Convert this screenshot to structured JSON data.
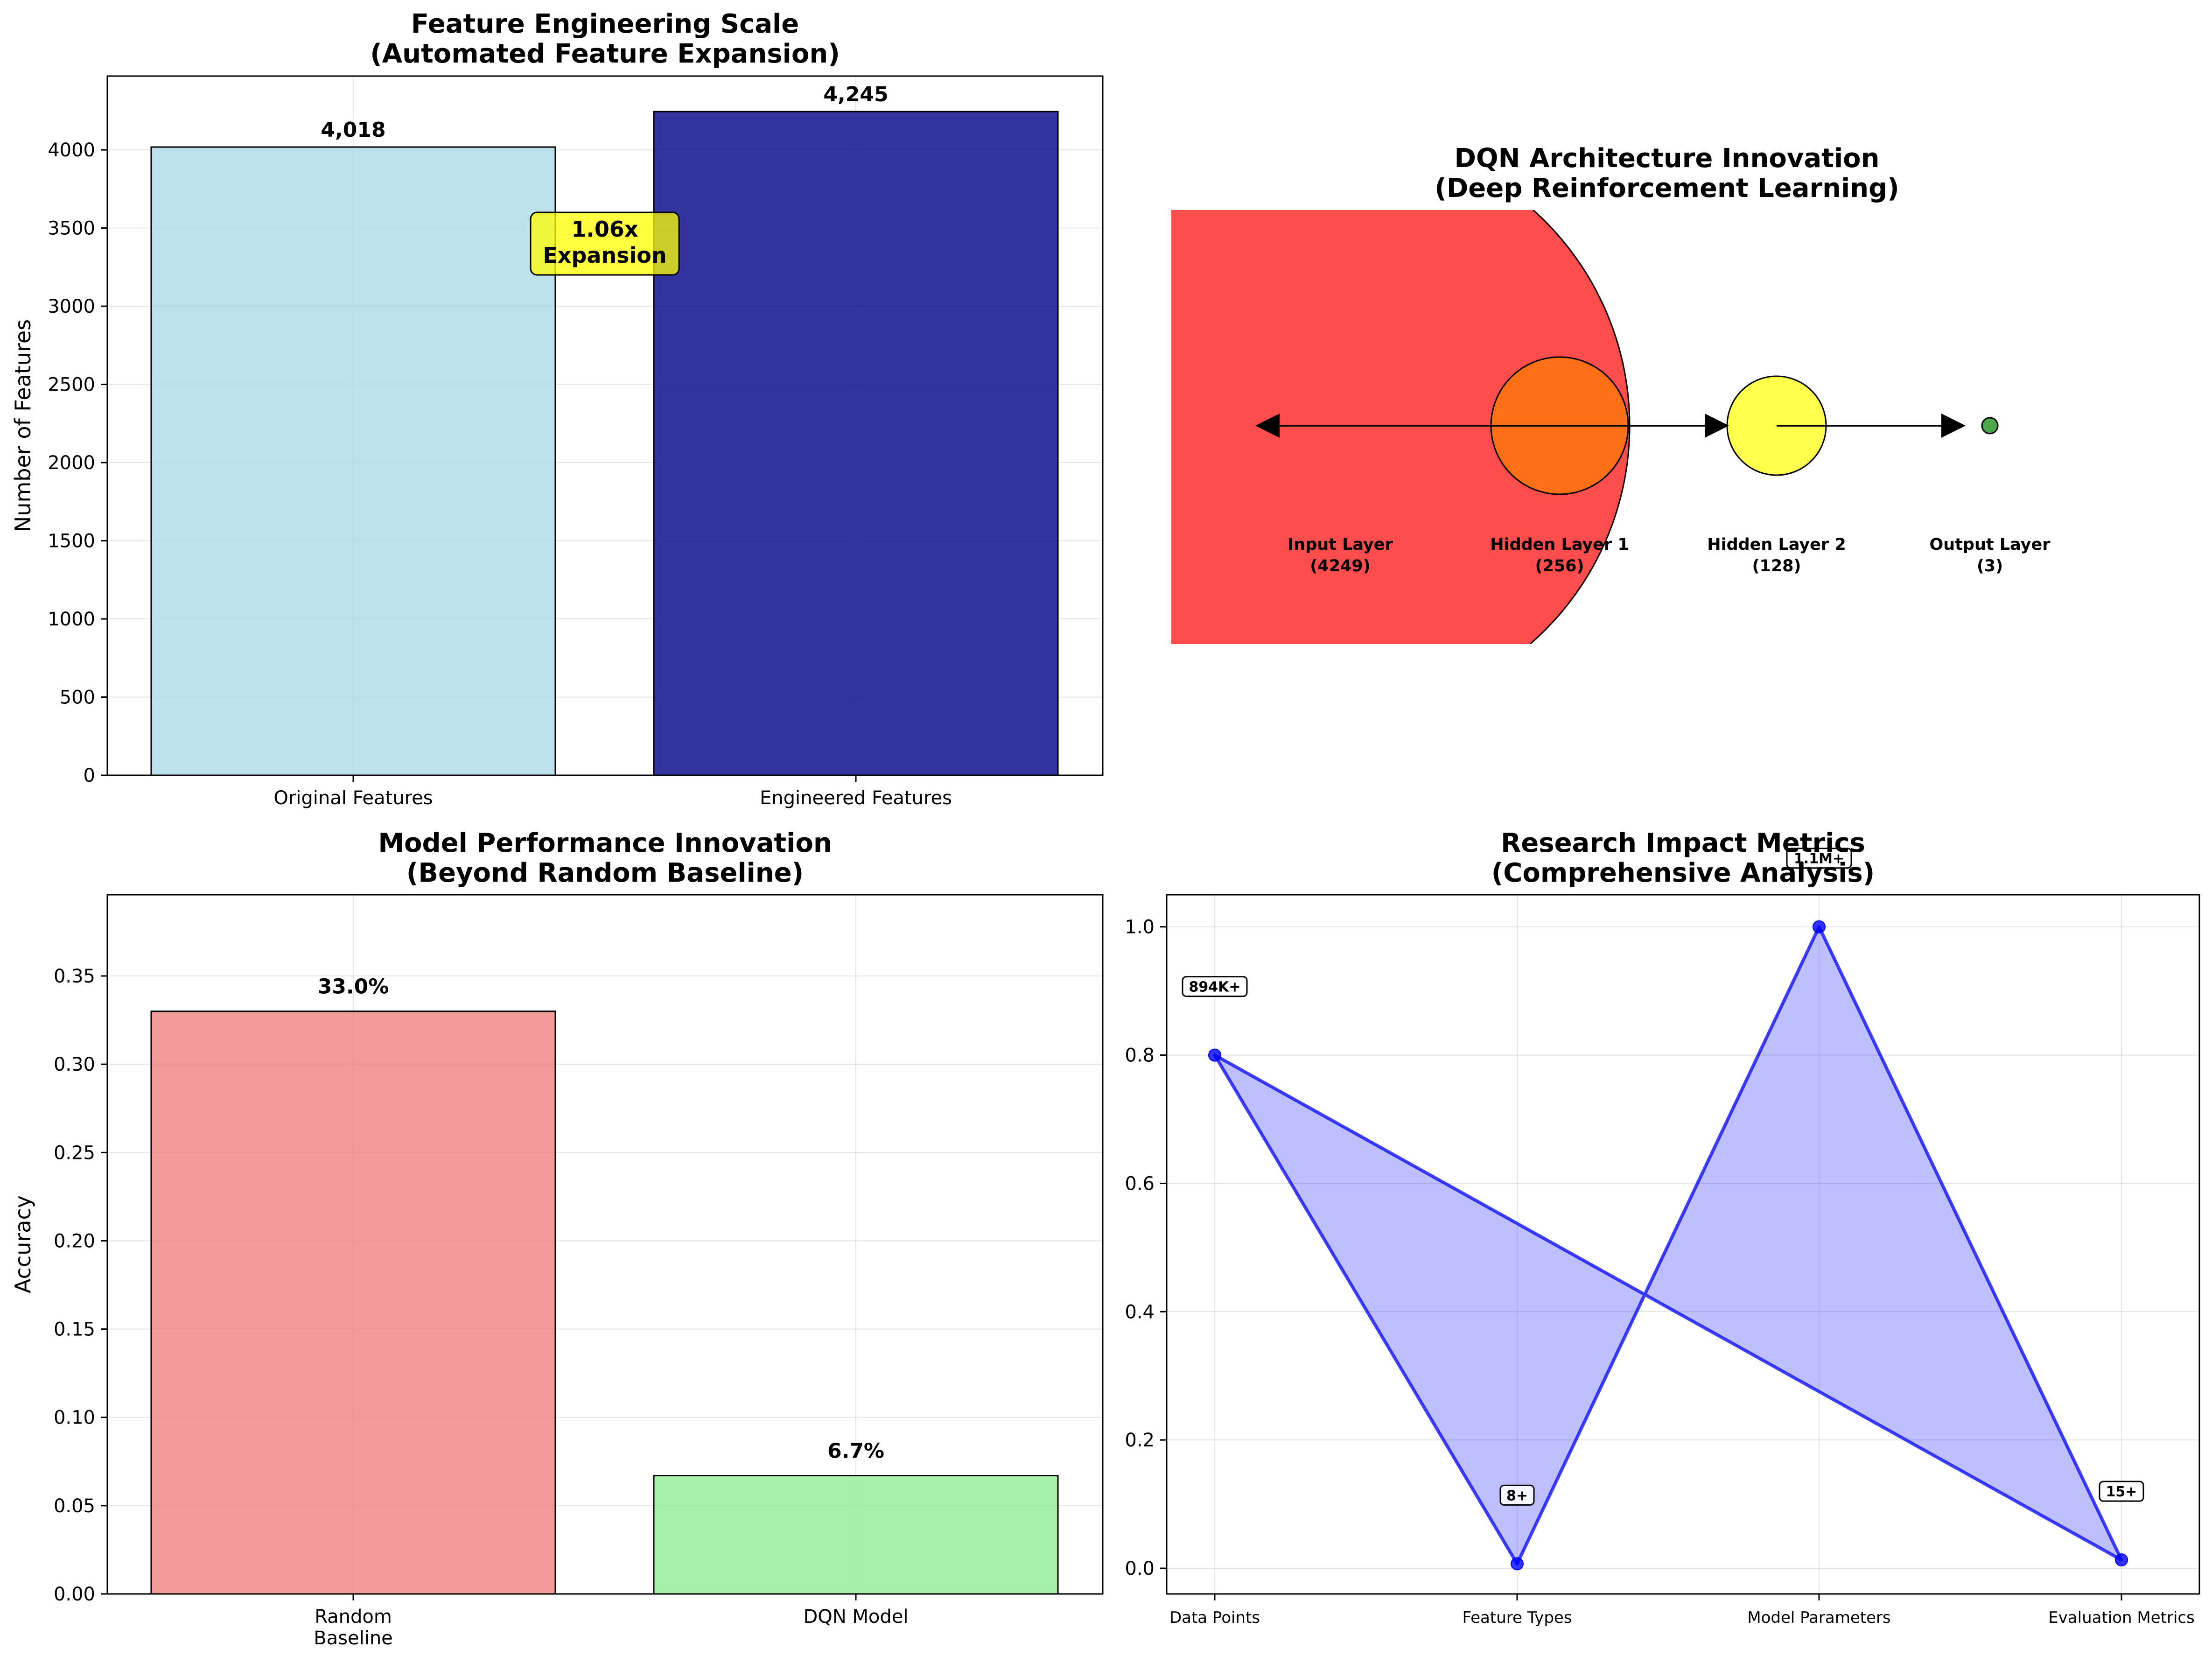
{
  "chart_data": [
    {
      "type": "bar",
      "title": "Feature Engineering Scale\n(Automated Feature Expansion)",
      "xlabel": "",
      "ylabel": "Number of Features",
      "categories": [
        "Original Features",
        "Engineered Features"
      ],
      "values": [
        4018,
        4245
      ],
      "data_labels": [
        "4,018",
        "4,245"
      ],
      "colors": [
        "#add8e6",
        "#00008b"
      ],
      "ylim": [
        0,
        4472
      ],
      "yticks": [
        0,
        500,
        1000,
        1500,
        2000,
        2500,
        3000,
        3500,
        4000
      ],
      "grid": true,
      "annotation": "1.06x\nExpansion",
      "annotation_color": "#ffff00"
    },
    {
      "type": "diagram",
      "title": "DQN Architecture Innovation\n(Deep Reinforcement Learning)",
      "layers": [
        {
          "name": "Input Layer",
          "size_label": "(4249)",
          "size": 4249,
          "color": "#ff0000"
        },
        {
          "name": "Hidden Layer 1",
          "size_label": "(256)",
          "size": 256,
          "color": "#ff7f00"
        },
        {
          "name": "Hidden Layer 2",
          "size_label": "(128)",
          "size": 128,
          "color": "#ffff00"
        },
        {
          "name": "Output Layer",
          "size_label": "(3)",
          "size": 3,
          "color": "#008000"
        }
      ]
    },
    {
      "type": "bar",
      "title": "Model Performance Innovation\n(Beyond Random Baseline)",
      "xlabel": "",
      "ylabel": "Accuracy",
      "categories": [
        "Random\nBaseline",
        "DQN Model"
      ],
      "values": [
        0.33,
        0.067
      ],
      "data_labels": [
        "33.0%",
        "6.7%"
      ],
      "colors": [
        "#f08080",
        "#90ee90"
      ],
      "ylim": [
        0,
        0.396
      ],
      "yticks": [
        0.0,
        0.05,
        0.1,
        0.15,
        0.2,
        0.25,
        0.3,
        0.35
      ],
      "ytick_labels": [
        "0.00",
        "0.05",
        "0.10",
        "0.15",
        "0.20",
        "0.25",
        "0.30",
        "0.35"
      ],
      "grid": true
    },
    {
      "type": "line",
      "title": "Research Impact Metrics\n(Comprehensive Analysis)",
      "xlabel": "",
      "ylabel": "",
      "categories": [
        "Data Points",
        "Feature Types",
        "Model Parameters",
        "Evaluation Metrics"
      ],
      "values": [
        0.8,
        0.007,
        1.0,
        0.013
      ],
      "data_labels": [
        "894K+",
        "8+",
        "1.1M+",
        "15+"
      ],
      "fill": "closed-polygon",
      "color": "#0000ff",
      "ylim": [
        -0.04,
        1.05
      ],
      "yticks": [
        0.0,
        0.2,
        0.4,
        0.6,
        0.8,
        1.0
      ],
      "ytick_labels": [
        "0.0",
        "0.2",
        "0.4",
        "0.6",
        "0.8",
        "1.0"
      ],
      "grid": true
    }
  ]
}
